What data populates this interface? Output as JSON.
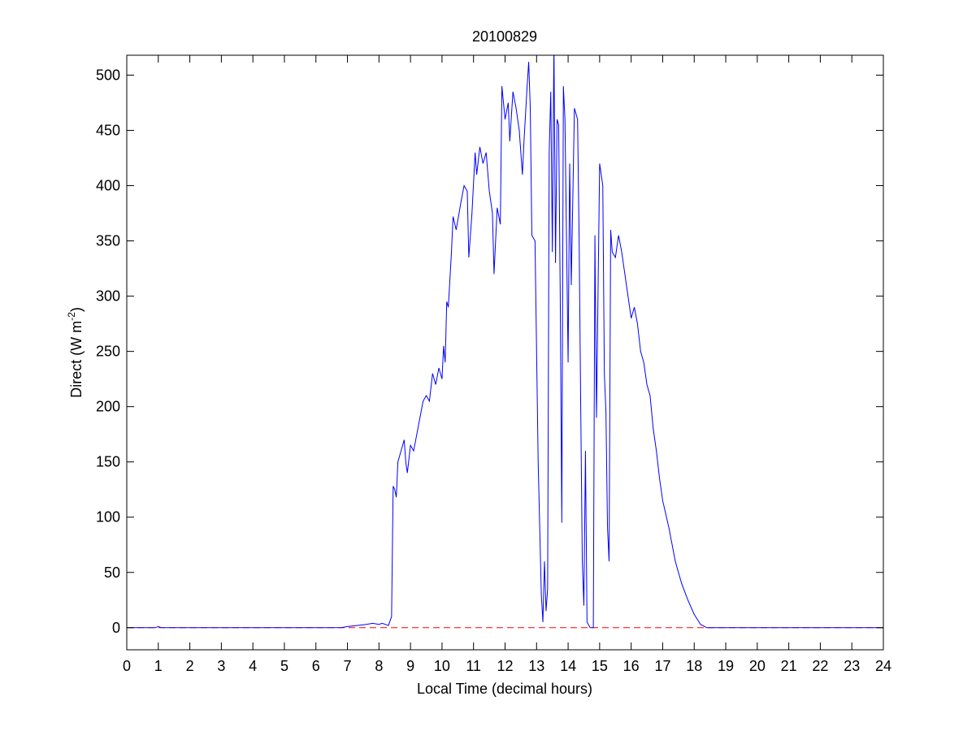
{
  "chart_data": {
    "type": "line",
    "title": "20100829",
    "xlabel": "Local Time (decimal hours)",
    "ylabel_parts": [
      "Direct (W m",
      "-2",
      ")"
    ],
    "xlim": [
      0,
      24
    ],
    "xticks": [
      0,
      1,
      2,
      3,
      4,
      5,
      6,
      7,
      8,
      9,
      10,
      11,
      12,
      13,
      14,
      15,
      16,
      17,
      18,
      19,
      20,
      21,
      22,
      23,
      24
    ],
    "ylim": [
      -20,
      518
    ],
    "yticks": [
      0,
      50,
      100,
      150,
      200,
      250,
      300,
      350,
      400,
      450,
      500
    ],
    "hline": {
      "y": 0,
      "color": "#ff0000",
      "style": "dashed"
    },
    "series": [
      {
        "color": "#0000ff",
        "x": [
          0,
          0.9,
          1.0,
          1.1,
          6.8,
          7.0,
          7.3,
          7.6,
          7.8,
          8.0,
          8.1,
          8.2,
          8.3,
          8.4,
          8.45,
          8.5,
          8.55,
          8.6,
          8.7,
          8.8,
          8.85,
          8.9,
          9.0,
          9.1,
          9.2,
          9.3,
          9.4,
          9.5,
          9.6,
          9.7,
          9.8,
          9.9,
          10.0,
          10.05,
          10.1,
          10.15,
          10.2,
          10.3,
          10.35,
          10.45,
          10.6,
          10.7,
          10.8,
          10.85,
          10.95,
          11.05,
          11.1,
          11.2,
          11.3,
          11.4,
          11.5,
          11.6,
          11.65,
          11.75,
          11.85,
          11.9,
          12.0,
          12.1,
          12.15,
          12.25,
          12.35,
          12.45,
          12.55,
          12.6,
          12.7,
          12.75,
          12.8,
          12.85,
          12.95,
          13.05,
          13.15,
          13.2,
          13.25,
          13.3,
          13.35,
          13.4,
          13.45,
          13.5,
          13.55,
          13.6,
          13.65,
          13.7,
          13.75,
          13.8,
          13.85,
          13.9,
          14.0,
          14.05,
          14.1,
          14.2,
          14.3,
          14.35,
          14.4,
          14.45,
          14.5,
          14.55,
          14.6,
          14.7,
          14.8,
          14.85,
          14.9,
          15.0,
          15.1,
          15.15,
          15.2,
          15.25,
          15.3,
          15.35,
          15.4,
          15.5,
          15.6,
          15.7,
          15.8,
          15.9,
          16.0,
          16.1,
          16.2,
          16.3,
          16.4,
          16.5,
          16.6,
          16.7,
          16.8,
          16.9,
          17.0,
          17.2,
          17.4,
          17.6,
          17.8,
          18.0,
          18.2,
          18.4,
          24
        ],
        "values": [
          0,
          0,
          1,
          0,
          0,
          1,
          2,
          3,
          4,
          3,
          4,
          3,
          2,
          10,
          128,
          125,
          118,
          150,
          160,
          170,
          150,
          140,
          165,
          160,
          175,
          190,
          205,
          210,
          205,
          230,
          220,
          235,
          225,
          255,
          240,
          295,
          290,
          340,
          372,
          360,
          385,
          400,
          395,
          335,
          375,
          430,
          410,
          435,
          420,
          430,
          395,
          375,
          320,
          380,
          365,
          490,
          460,
          475,
          440,
          485,
          470,
          450,
          410,
          440,
          490,
          512,
          470,
          355,
          350,
          150,
          30,
          5,
          60,
          15,
          35,
          430,
          485,
          340,
          530,
          330,
          460,
          455,
          300,
          95,
          490,
          460,
          240,
          420,
          310,
          470,
          460,
          350,
          200,
          60,
          20,
          160,
          5,
          0,
          0,
          355,
          190,
          420,
          400,
          230,
          195,
          90,
          60,
          360,
          340,
          335,
          355,
          340,
          320,
          300,
          280,
          290,
          275,
          250,
          240,
          220,
          210,
          180,
          160,
          135,
          115,
          90,
          60,
          40,
          25,
          12,
          3,
          0,
          0
        ]
      }
    ]
  }
}
